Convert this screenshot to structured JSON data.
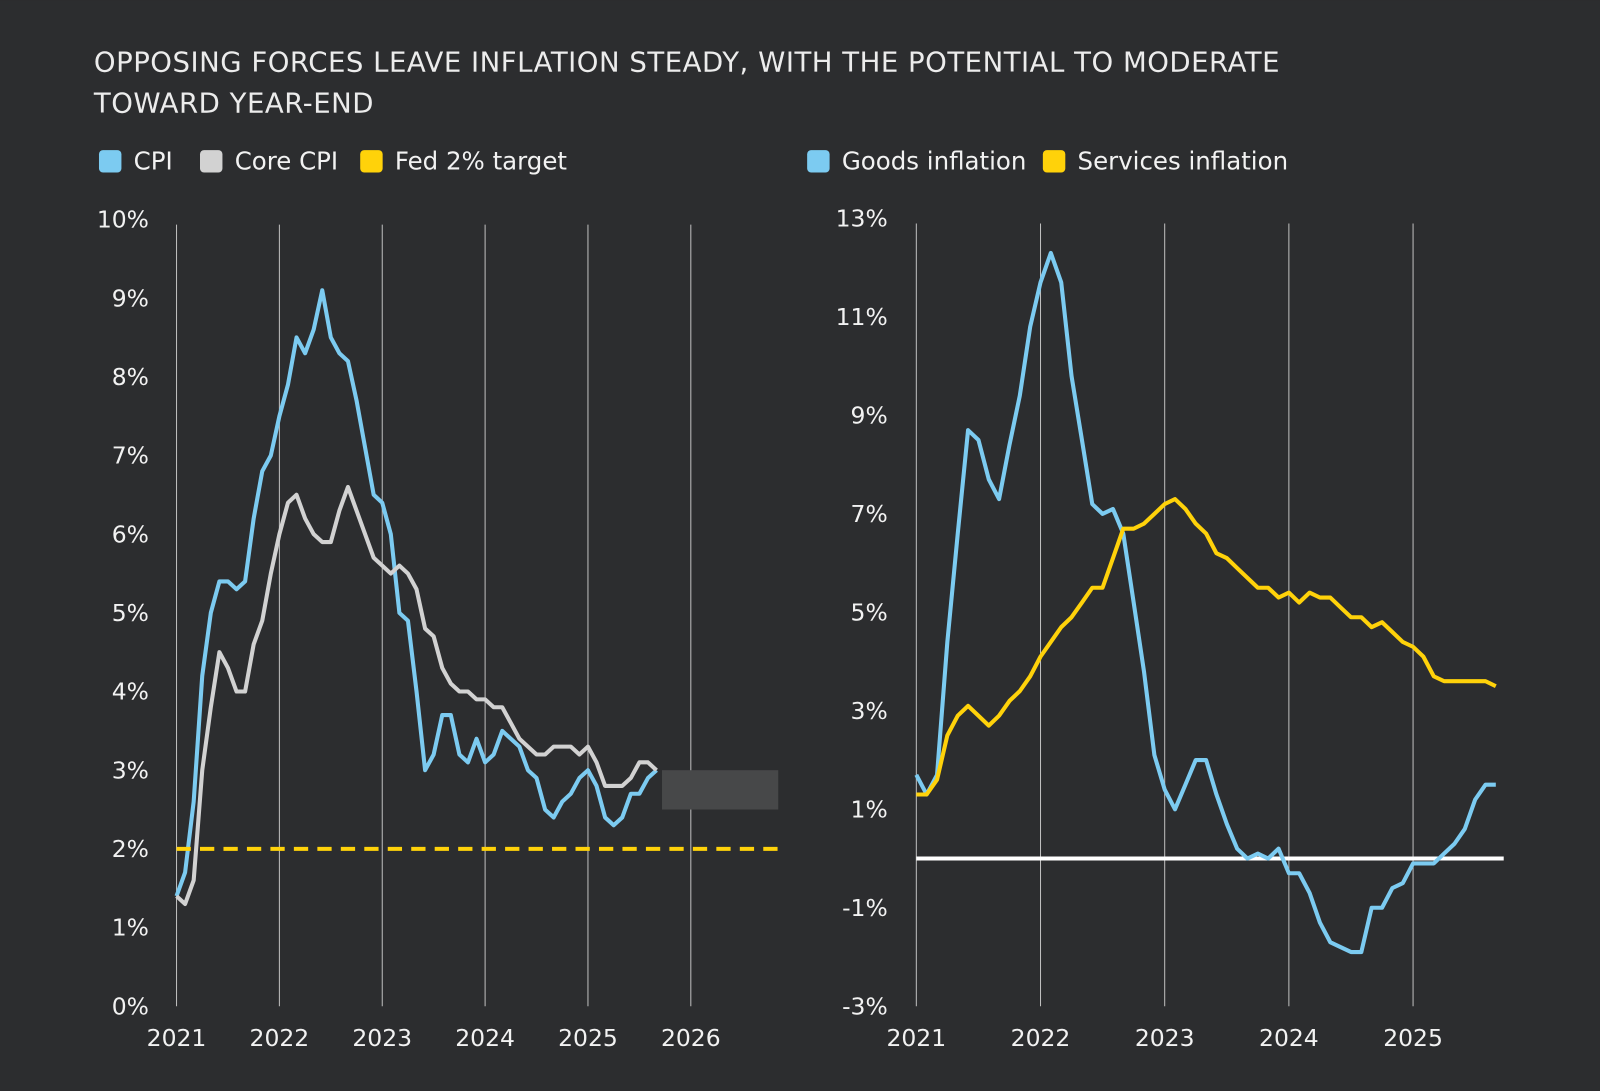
{
  "title_lines": [
    "OPPOSING FORCES LEAVE INFLATION STEADY, WITH THE POTENTIAL TO MODERATE",
    "TOWARD YEAR-END"
  ],
  "colors": {
    "background": "#2c2d2f",
    "cyan": "#7ccbf1",
    "gray": "#d2d2d2",
    "yellow": "#ffd20a",
    "zero_line": "#ffffff",
    "grid": "#bfbfbf",
    "shade": "#474849"
  },
  "chart_data": [
    {
      "type": "line",
      "legend": [
        "CPI",
        "Core CPI",
        "Fed 2% target"
      ],
      "legend_placement": "top-left",
      "x_start": "2021-01",
      "frequency": "monthly",
      "x_ticks": [
        "2021",
        "2022",
        "2023",
        "2024",
        "2025",
        "2026"
      ],
      "y_ticks": [
        "0%",
        "1%",
        "2%",
        "3%",
        "4%",
        "5%",
        "6%",
        "7%",
        "8%",
        "9%",
        "10%"
      ],
      "ylim": [
        0,
        10
      ],
      "xlim": [
        2021,
        2026.85
      ],
      "grid": "vertical at years",
      "series": [
        {
          "name": "CPI",
          "color": "cyan",
          "values": [
            1.4,
            1.7,
            2.6,
            4.2,
            5.0,
            5.4,
            5.4,
            5.3,
            5.4,
            6.2,
            6.8,
            7.0,
            7.5,
            7.9,
            8.5,
            8.3,
            8.6,
            9.1,
            8.5,
            8.3,
            8.2,
            7.7,
            7.1,
            6.5,
            6.4,
            6.0,
            5.0,
            4.9,
            4.0,
            3.0,
            3.2,
            3.7,
            3.7,
            3.2,
            3.1,
            3.4,
            3.1,
            3.2,
            3.5,
            3.4,
            3.3,
            3.0,
            2.9,
            2.5,
            2.4,
            2.6,
            2.7,
            2.9,
            3.0,
            2.8,
            2.4,
            2.3,
            2.4,
            2.7,
            2.7,
            2.9,
            3.0
          ]
        },
        {
          "name": "Core CPI",
          "color": "gray",
          "values": [
            1.4,
            1.3,
            1.6,
            3.0,
            3.8,
            4.5,
            4.3,
            4.0,
            4.0,
            4.6,
            4.9,
            5.5,
            6.0,
            6.4,
            6.5,
            6.2,
            6.0,
            5.9,
            5.9,
            6.3,
            6.6,
            6.3,
            6.0,
            5.7,
            5.6,
            5.5,
            5.6,
            5.5,
            5.3,
            4.8,
            4.7,
            4.3,
            4.1,
            4.0,
            4.0,
            3.9,
            3.9,
            3.8,
            3.8,
            3.6,
            3.4,
            3.3,
            3.2,
            3.2,
            3.3,
            3.3,
            3.3,
            3.2,
            3.3,
            3.1,
            2.8,
            2.8,
            2.8,
            2.9,
            3.1,
            3.1,
            3.0
          ]
        },
        {
          "name": "Fed 2% target",
          "color": "yellow",
          "style": "dashed",
          "value": 2
        }
      ],
      "shaded_band": {
        "x": [
          2025.72,
          2026.85
        ],
        "y": [
          2.5,
          3.0
        ]
      }
    },
    {
      "type": "line",
      "legend": [
        "Goods inflation",
        "Services inflation"
      ],
      "legend_placement": "top-left",
      "x_start": "2021-01",
      "frequency": "monthly",
      "x_ticks": [
        "2021",
        "2022",
        "2023",
        "2024",
        "2025"
      ],
      "y_ticks": [
        "-3%",
        "-1%",
        "1%",
        "3%",
        "5%",
        "7%",
        "9%",
        "11%",
        "13%"
      ],
      "ylim": [
        -3,
        13
      ],
      "xlim": [
        2021,
        2025.73
      ],
      "grid": "vertical at years",
      "zero_line": true,
      "series": [
        {
          "name": "Goods inflation",
          "color": "cyan",
          "values": [
            1.7,
            1.3,
            1.7,
            4.4,
            6.6,
            8.7,
            8.5,
            7.7,
            7.3,
            8.4,
            9.4,
            10.8,
            11.7,
            12.3,
            11.7,
            9.8,
            8.5,
            7.2,
            7.0,
            7.1,
            6.6,
            5.2,
            3.8,
            2.1,
            1.4,
            1.0,
            1.5,
            2.0,
            2.0,
            1.3,
            0.7,
            0.2,
            0.0,
            0.1,
            0.0,
            0.2,
            -0.3,
            -0.3,
            -0.7,
            -1.3,
            -1.7,
            -1.8,
            -1.9,
            -1.9,
            -1.0,
            -1.0,
            -0.6,
            -0.5,
            -0.1,
            -0.1,
            -0.1,
            0.1,
            0.3,
            0.6,
            1.2,
            1.5,
            1.5
          ]
        },
        {
          "name": "Services inflation",
          "color": "yellow",
          "values": [
            1.3,
            1.3,
            1.6,
            2.5,
            2.9,
            3.1,
            2.9,
            2.7,
            2.9,
            3.2,
            3.4,
            3.7,
            4.1,
            4.4,
            4.7,
            4.9,
            5.2,
            5.5,
            5.5,
            6.1,
            6.7,
            6.7,
            6.8,
            7.0,
            7.2,
            7.3,
            7.1,
            6.8,
            6.6,
            6.2,
            6.1,
            5.9,
            5.7,
            5.5,
            5.5,
            5.3,
            5.4,
            5.2,
            5.4,
            5.3,
            5.3,
            5.1,
            4.9,
            4.9,
            4.7,
            4.8,
            4.6,
            4.4,
            4.3,
            4.1,
            3.7,
            3.6,
            3.6,
            3.6,
            3.6,
            3.6,
            3.5
          ]
        }
      ]
    }
  ]
}
